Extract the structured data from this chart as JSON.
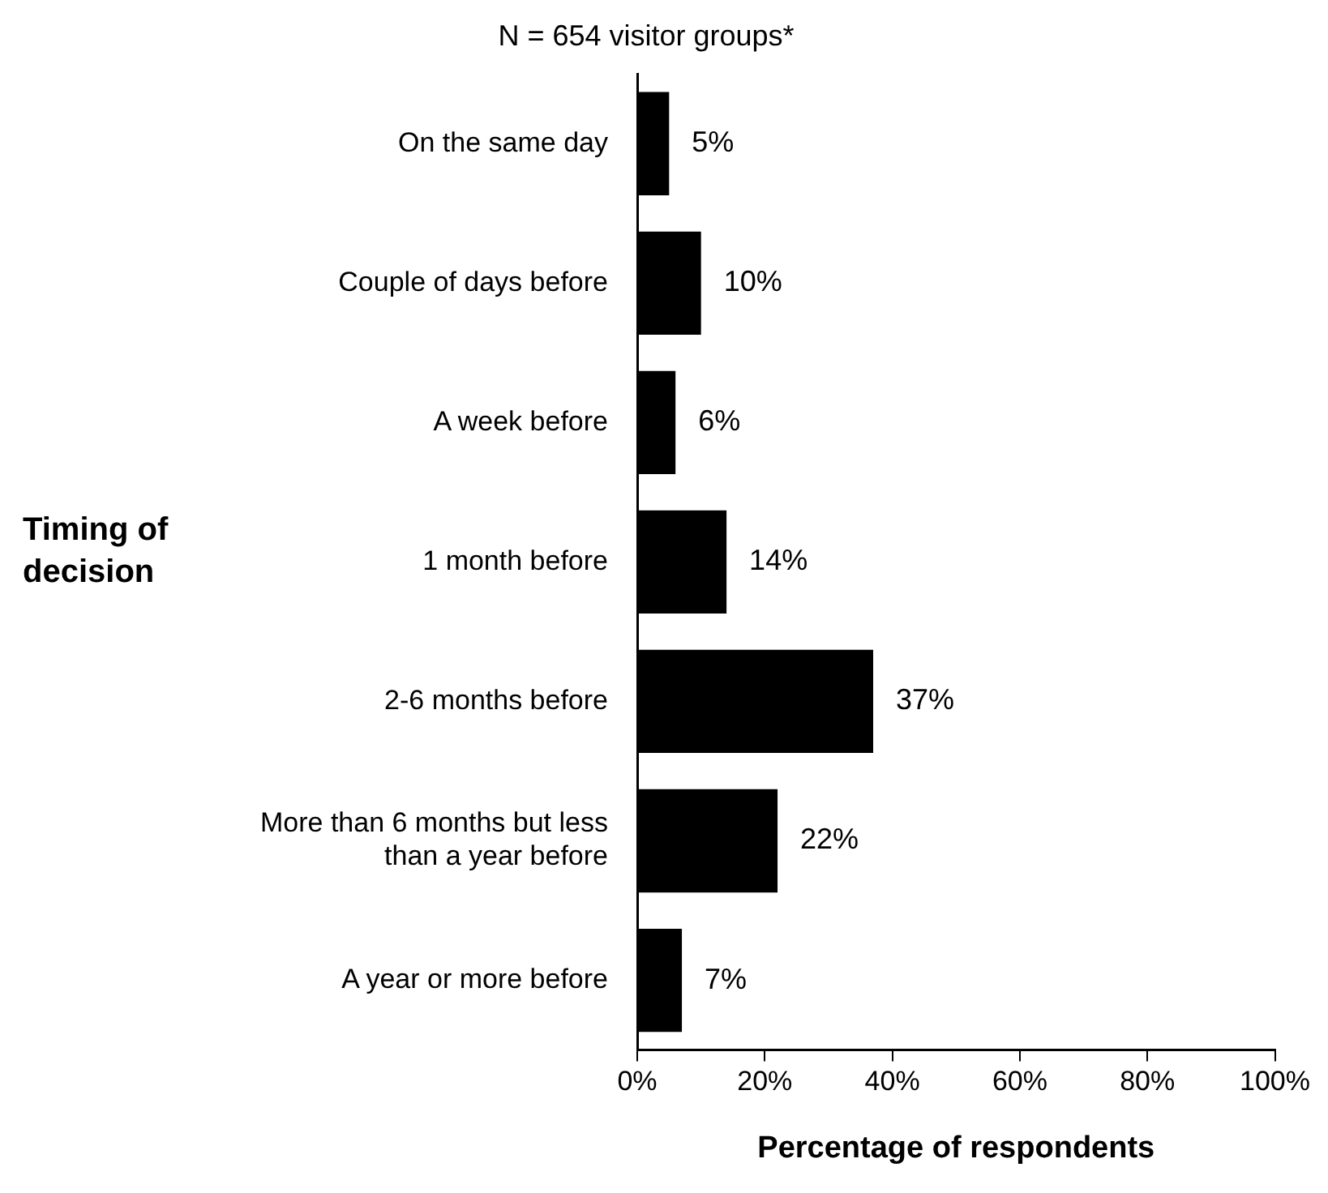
{
  "chart_data": {
    "type": "bar",
    "orientation": "horizontal",
    "title": "N = 654 visitor groups*",
    "xlabel": "Percentage of respondents",
    "ylabel": "Timing of decision",
    "categories": [
      "On the same day",
      "Couple of days before",
      "A week before",
      "1 month before",
      "2-6 months before",
      "More than 6 months but less than a year before",
      "A year or more before"
    ],
    "values": [
      5,
      10,
      6,
      14,
      37,
      22,
      7
    ],
    "value_labels": [
      "5%",
      "10%",
      "6%",
      "14%",
      "37%",
      "22%",
      "7%"
    ],
    "color": "#000000",
    "xlim": [
      0,
      100
    ],
    "xticks": [
      {
        "value": 0,
        "label": "0%"
      },
      {
        "value": 20,
        "label": "20%"
      },
      {
        "value": 40,
        "label": "40%"
      },
      {
        "value": 60,
        "label": "60%"
      },
      {
        "value": 80,
        "label": "80%"
      },
      {
        "value": 100,
        "label": "100%"
      }
    ],
    "grid": false,
    "legend": false
  }
}
